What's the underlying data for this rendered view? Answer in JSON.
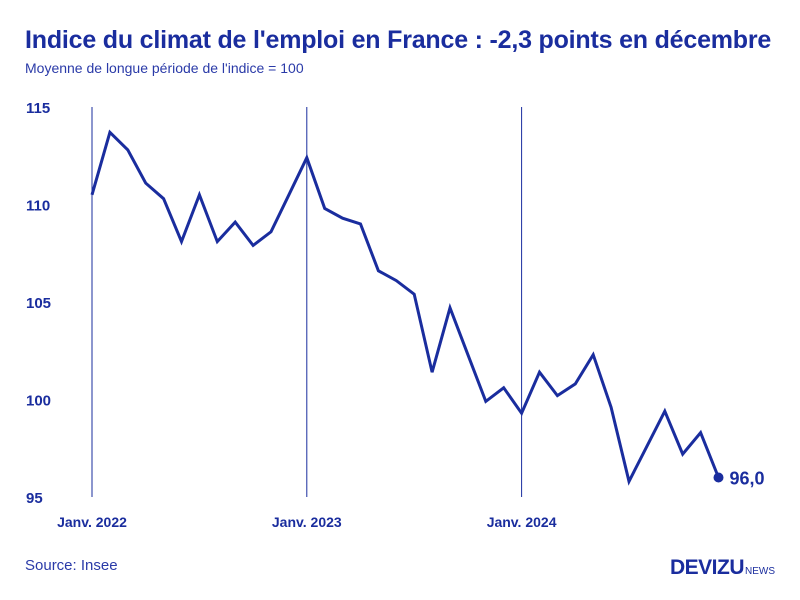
{
  "title": "Indice du climat de l'emploi en France : -2,3 points en décembre",
  "subtitle": "Moyenne de longue période de l'indice = 100",
  "source": "Source: Insee",
  "brand": {
    "main": "DEVIZU",
    "sub": "NEWS"
  },
  "colors": {
    "line": "#1a2d9e",
    "text": "#1a2d9e"
  },
  "chart_data": {
    "type": "line",
    "ylim": [
      95,
      115
    ],
    "yticks": [
      95,
      100,
      105,
      110,
      115
    ],
    "x_labels": [
      {
        "index": 0,
        "label": "Janv. 2022"
      },
      {
        "index": 12,
        "label": "Janv. 2023"
      },
      {
        "index": 24,
        "label": "Janv. 2024"
      }
    ],
    "vertical_lines_at": [
      0,
      12,
      24
    ],
    "values": [
      110.5,
      113.7,
      112.8,
      111.1,
      110.3,
      108.1,
      110.5,
      108.1,
      109.1,
      107.9,
      108.6,
      110.5,
      112.4,
      109.8,
      109.3,
      109.0,
      106.6,
      106.1,
      105.4,
      101.4,
      104.7,
      102.3,
      99.9,
      100.6,
      99.3,
      101.4,
      100.2,
      100.8,
      102.3,
      99.6,
      95.8,
      97.6,
      99.4,
      97.2,
      98.3,
      96.0
    ],
    "last_point_label": "96,0",
    "grid": false
  }
}
